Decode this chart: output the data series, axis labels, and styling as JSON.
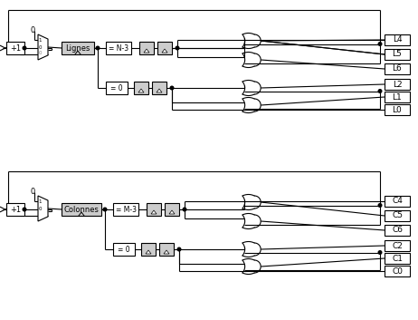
{
  "bg_color": "#ffffff",
  "lw": 0.8,
  "top_labels": [
    "L4",
    "L5",
    "L6",
    "L2",
    "L1",
    "L0"
  ],
  "bot_labels": [
    "C4",
    "C5",
    "C6",
    "C2",
    "C1",
    "C0"
  ],
  "top_reg": "Lignes",
  "bot_reg": "Colonnes",
  "top_eq1": "= N-3",
  "bot_eq1": "= M-3",
  "eq2": "= 0",
  "plus": "+1",
  "zero": "0"
}
